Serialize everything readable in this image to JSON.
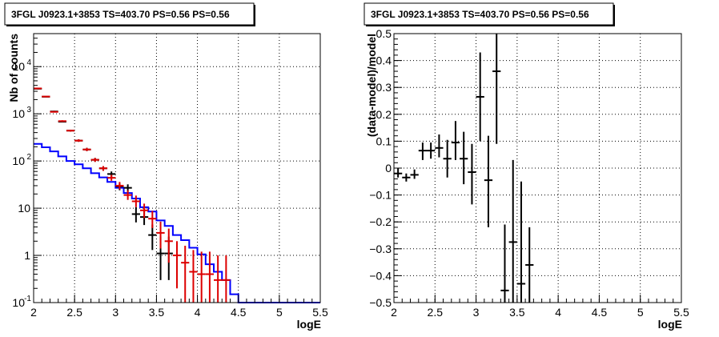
{
  "chart_data": [
    {
      "type": "line",
      "title": "3FGL J0923.1+3853 TS=403.70 PS=0.56 PS=0.56",
      "xlabel": "logE",
      "ylabel": "Nb of counts",
      "xlim": [
        2,
        5.5
      ],
      "ylim": [
        0.1,
        50000
      ],
      "yscale": "log",
      "grid": true,
      "x_ticks": [
        "2",
        "2.5",
        "3",
        "3.5",
        "4",
        "4.5",
        "5",
        "5.5"
      ],
      "y_tick_labels": [
        {
          "value": 0.1,
          "base": "10",
          "exp": "-1"
        },
        {
          "value": 1,
          "base": "1",
          "exp": ""
        },
        {
          "value": 10,
          "base": "10",
          "exp": ""
        },
        {
          "value": 100,
          "base": "10",
          "exp": "2"
        },
        {
          "value": 1000,
          "base": "10",
          "exp": "3"
        },
        {
          "value": 10000,
          "base": "10",
          "exp": "4"
        }
      ],
      "series": [
        {
          "kind": "step",
          "color": "#0000ff",
          "edges": [
            2.0,
            2.1,
            2.2,
            2.3,
            2.4,
            2.5,
            2.6,
            2.7,
            2.8,
            2.9,
            3.0,
            3.1,
            3.2,
            3.3,
            3.4,
            3.5,
            3.6,
            3.7,
            3.8,
            3.9,
            4.0,
            4.1,
            4.2,
            4.3,
            4.4,
            4.5,
            5.5
          ],
          "values": [
            230,
            195,
            160,
            125,
            100,
            85,
            70,
            55,
            45,
            36,
            27,
            21,
            16,
            10.5,
            8.5,
            5.5,
            4.2,
            2.7,
            2.1,
            1.45,
            1.05,
            0.65,
            0.45,
            0.3,
            0.15,
            0.1
          ]
        },
        {
          "kind": "errorbar",
          "color": "#000000",
          "x": [
            2.05,
            2.15,
            2.25,
            2.35,
            2.45,
            2.55,
            2.65,
            2.75,
            2.85,
            2.95,
            3.05,
            3.15,
            3.25,
            3.35,
            3.45,
            3.55,
            3.65
          ],
          "y": [
            3400,
            2300,
            1120,
            680,
            440,
            270,
            175,
            106,
            70,
            53,
            29,
            27,
            7.5,
            6.5,
            2.7,
            1.1,
            1.1
          ],
          "yerr_low": [
            3300,
            2250,
            1085,
            655,
            420,
            255,
            162,
            96,
            62,
            46,
            24,
            22,
            5,
            4.4,
            1.3,
            0.3,
            0.3
          ],
          "yerr_high": [
            3520,
            2350,
            1160,
            710,
            460,
            288,
            190,
            116,
            78,
            60,
            34,
            32,
            10.5,
            9,
            4.5,
            2.5,
            2.5
          ]
        },
        {
          "kind": "errorbar",
          "color": "#dd0000",
          "x": [
            2.05,
            2.15,
            2.25,
            2.35,
            2.45,
            2.55,
            2.65,
            2.75,
            2.85,
            2.95,
            3.05,
            3.15,
            3.25,
            3.35,
            3.45,
            3.55,
            3.65,
            3.75,
            3.85,
            3.95,
            4.05,
            4.15,
            4.25,
            4.35
          ],
          "y": [
            3450,
            2320,
            1100,
            700,
            440,
            270,
            175,
            106,
            70,
            44,
            30,
            19,
            14,
            9,
            6,
            3,
            2,
            1,
            0.7,
            0.45,
            0.4,
            0.4,
            0.3,
            0.3
          ],
          "yerr_low": [
            3350,
            2270,
            1065,
            675,
            420,
            255,
            162,
            96,
            62,
            38,
            25,
            15,
            10.5,
            6.2,
            3.8,
            1.4,
            0.7,
            0.2,
            0.1,
            0.1,
            0.1,
            0.1,
            0.1,
            0.1
          ],
          "yerr_high": [
            3570,
            2370,
            1140,
            730,
            460,
            288,
            190,
            116,
            78,
            51,
            36,
            24,
            18.5,
            12.5,
            8.8,
            5.2,
            3.7,
            2,
            1.6,
            1.3,
            1.2,
            1.2,
            1,
            1
          ]
        }
      ]
    },
    {
      "type": "scatter",
      "title": "3FGL J0923.1+3853 TS=403.70 PS=0.56 PS=0.56",
      "xlabel": "logE",
      "ylabel": "(data-model)/model",
      "xlim": [
        2,
        5.5
      ],
      "ylim": [
        -0.5,
        0.5
      ],
      "grid": true,
      "x_ticks": [
        "2",
        "2.5",
        "3",
        "3.5",
        "4",
        "4.5",
        "5",
        "5.5"
      ],
      "y_ticks": [
        "-0.5",
        "-0.4",
        "-0.3",
        "-0.2",
        "-0.1",
        "0",
        "0.1",
        "0.2",
        "0.3",
        "0.4",
        "0.5"
      ],
      "series": [
        {
          "kind": "errorbar",
          "color": "#000000",
          "x": [
            2.05,
            2.15,
            2.25,
            2.35,
            2.45,
            2.55,
            2.65,
            2.75,
            2.85,
            2.95,
            3.05,
            3.15,
            3.25,
            3.35,
            3.45,
            3.55,
            3.65
          ],
          "y": [
            -0.02,
            -0.035,
            -0.025,
            0.065,
            0.065,
            0.075,
            0.035,
            0.095,
            0.035,
            -0.015,
            0.265,
            -0.045,
            0.36,
            -0.455,
            -0.275,
            -0.43,
            -0.36
          ],
          "yerr_low": [
            -0.035,
            -0.05,
            -0.04,
            0.03,
            0.035,
            0.04,
            -0.035,
            0.03,
            -0.06,
            -0.135,
            0.1,
            -0.22,
            0.09,
            -0.5,
            -0.5,
            -0.5,
            -0.5
          ],
          "yerr_high": [
            0,
            -0.02,
            -0.005,
            0.095,
            0.095,
            0.125,
            0.105,
            0.175,
            0.135,
            0.09,
            0.43,
            0.12,
            0.5,
            -0.21,
            0.03,
            -0.05,
            -0.22
          ]
        }
      ]
    }
  ]
}
